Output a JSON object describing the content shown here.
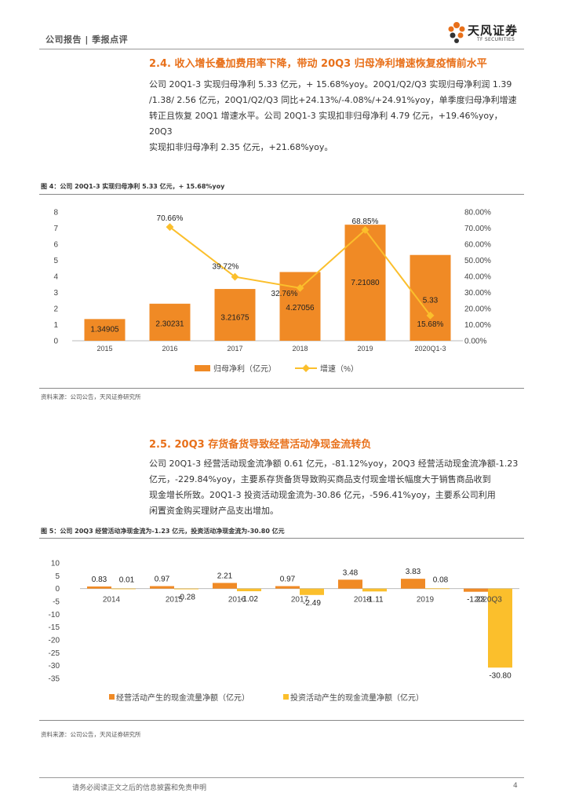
{
  "header": {
    "category": "公司报告 | 季报点评",
    "logo_cn": "天风证券",
    "logo_en": "TF SECURITIES"
  },
  "section1": {
    "title": "2.4. 收入增长叠加费用率下降，带动 20Q3 归母净利增速恢复疫情前水平",
    "lines": [
      "公司 20Q1-3 实现归母净利 5.33 亿元，+ 15.68%yoy。20Q1/Q2/Q3 实现归母净利润 1.39",
      "/1.38/ 2.56 亿元，20Q1/Q2/Q3 同比+24.13%/-4.08%/+24.91%yoy，单季度归母净利增速",
      "转正且恢复 20Q1 增速水平。公司 20Q1-3 实现扣非归母净利 4.79 亿元，+19.46%yoy，20Q3",
      "实现扣非归母净利 2.35 亿元，+21.68%yoy。"
    ]
  },
  "figure4": {
    "title": "图 4：公司 20Q1-3 实现归母净利 5.33 亿元，+ 15.68%yoy",
    "source": "资料来源：公司公告，天风证券研究所"
  },
  "section2": {
    "title": "2.5. 20Q3 存货备货导致经营活动净现金流转负",
    "lines": [
      "公司 20Q1-3 经营活动现金流净额 0.61 亿元，-81.12%yoy，20Q3 经营活动现金流净额-1.23",
      "亿元，-229.84%yoy，主要系存货备货导致购买商品支付现金增长幅度大于销售商品收到",
      "现金增长所致。20Q1-3 投资活动现金流为-30.86 亿元，-596.41%yoy，主要系公司利用",
      "闲置资金购买理财产品支出增加。"
    ]
  },
  "figure5": {
    "title": "图 5：公司 20Q3 经营活动净现金流为-1.23 亿元，投资活动净现金流为-30.80 亿元",
    "source": "资料来源：公司公告，天风证券研究所"
  },
  "footer": {
    "disclaimer": "请务必阅读正文之后的信息披露和免责申明",
    "page": "4"
  },
  "colors": {
    "orange": "#f08a25",
    "yellow": "#fbbf2c",
    "title_orange": "#e8701a"
  },
  "chart_data": [
    {
      "type": "bar",
      "categories": [
        "2015",
        "2016",
        "2017",
        "2018",
        "2019",
        "2020Q1-3"
      ],
      "series": [
        {
          "name": "归母净利（亿元）",
          "kind": "bar",
          "axis": "left",
          "values": [
            1.34905,
            2.30231,
            3.21675,
            4.27056,
            7.2108,
            5.33
          ],
          "labels": [
            "1.34905",
            "2.30231",
            "3.21675",
            "4.27056",
            "7.21080",
            "5.33"
          ]
        },
        {
          "name": "增速（%）",
          "kind": "line",
          "axis": "right",
          "values": [
            null,
            70.66,
            39.72,
            32.76,
            68.85,
            15.68
          ],
          "labels": [
            "",
            "70.66%",
            "39.72%",
            "32.76%",
            "68.85%",
            "15.68%"
          ]
        }
      ],
      "ylim": [
        0,
        8
      ],
      "yticks": [
        "0",
        "1",
        "2",
        "3",
        "4",
        "5",
        "6",
        "7",
        "8"
      ],
      "y2lim": [
        0,
        80
      ],
      "y2ticks": [
        "0.00%",
        "10.00%",
        "20.00%",
        "30.00%",
        "40.00%",
        "50.00%",
        "60.00%",
        "70.00%",
        "80.00%"
      ],
      "legend": [
        "归母净利（亿元）",
        "增速（%）"
      ]
    },
    {
      "type": "bar",
      "categories": [
        "2014",
        "2015",
        "2016",
        "2017",
        "2018",
        "2019",
        "2020Q3"
      ],
      "series": [
        {
          "name": "经营活动产生的现金流量净额（亿元）",
          "values": [
            0.83,
            0.97,
            2.21,
            0.97,
            3.48,
            3.83,
            -1.23
          ],
          "labels": [
            "0.83",
            "0.97",
            "2.21",
            "0.97",
            "3.48",
            "3.83",
            "-1.23"
          ]
        },
        {
          "name": "投资活动产生的现金流量净额（亿元）",
          "values": [
            0.01,
            -0.28,
            -1.02,
            -2.49,
            -1.11,
            0.08,
            -30.8
          ],
          "labels": [
            "0.01",
            "-0.28",
            "-1.02",
            "-2.49",
            "-1.11",
            "0.08",
            "-30.80"
          ]
        }
      ],
      "ylim": [
        -35,
        10
      ],
      "yticks": [
        "10",
        "5",
        "0",
        "-5",
        "-10",
        "-15",
        "-20",
        "-25",
        "-30",
        "-35"
      ],
      "legend": [
        "经营活动产生的现金流量净额（亿元）",
        "投资活动产生的现金流量净额（亿元）"
      ]
    }
  ]
}
